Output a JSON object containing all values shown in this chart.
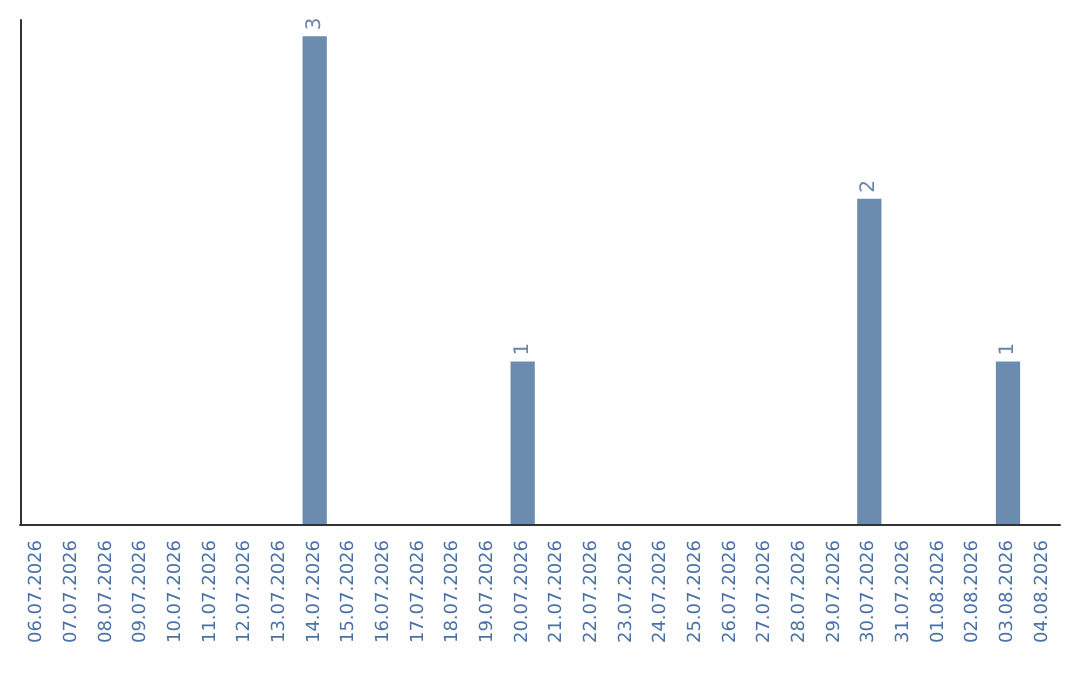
{
  "chart_data": {
    "type": "bar",
    "categories": [
      "06.07.2026",
      "07.07.2026",
      "08.07.2026",
      "09.07.2026",
      "10.07.2026",
      "11.07.2026",
      "12.07.2026",
      "13.07.2026",
      "14.07.2026",
      "15.07.2026",
      "16.07.2026",
      "17.07.2026",
      "18.07.2026",
      "19.07.2026",
      "20.07.2026",
      "21.07.2026",
      "22.07.2026",
      "23.07.2026",
      "24.07.2026",
      "25.07.2026",
      "26.07.2026",
      "27.07.2026",
      "28.07.2026",
      "29.07.2026",
      "30.07.2026",
      "31.07.2026",
      "01.08.2026",
      "02.08.2026",
      "03.08.2026",
      "04.08.2026"
    ],
    "values": [
      0,
      0,
      0,
      0,
      0,
      0,
      0,
      0,
      3,
      0,
      0,
      0,
      0,
      0,
      1,
      0,
      0,
      0,
      0,
      0,
      0,
      0,
      0,
      0,
      2,
      0,
      0,
      0,
      1,
      0
    ],
    "value_labels": [
      null,
      null,
      null,
      null,
      null,
      null,
      null,
      null,
      "3",
      null,
      null,
      null,
      null,
      null,
      "1",
      null,
      null,
      null,
      null,
      null,
      null,
      null,
      null,
      null,
      "2",
      null,
      null,
      null,
      "1",
      null
    ],
    "color": "#6b8cae",
    "ylim": [
      0,
      3.1
    ],
    "grid": false,
    "tick_labels": "x"
  }
}
